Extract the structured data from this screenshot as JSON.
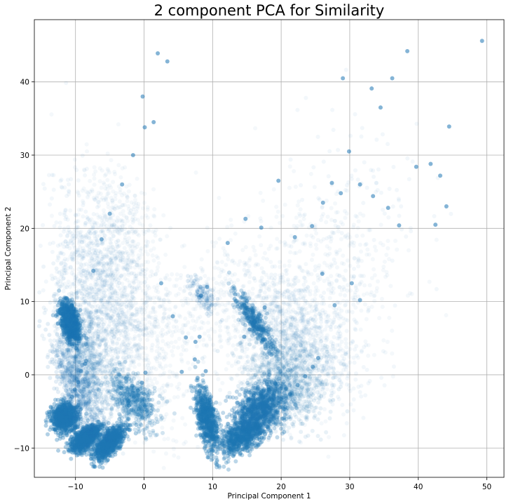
{
  "chart_data": {
    "type": "scatter",
    "title": "2 component PCA for Similarity",
    "xlabel": "Principal Component 1",
    "ylabel": "Principal Component 2",
    "xlim": [
      -16,
      52.5
    ],
    "ylim": [
      -14,
      48.5
    ],
    "xticks": [
      -10,
      0,
      10,
      20,
      30,
      40,
      50
    ],
    "yticks": [
      -10,
      0,
      10,
      20,
      30,
      40
    ],
    "xtick_labels": [
      "−10",
      "0",
      "10",
      "20",
      "30",
      "40",
      "50"
    ],
    "ytick_labels": [
      "−10",
      "0",
      "10",
      "20",
      "30",
      "40"
    ],
    "grid": true,
    "marker_color": "#1f77b4",
    "marker_alpha": 0.08,
    "series": [
      {
        "values": [
          [
            -11.2,
            7.5
          ],
          [
            -10.8,
            8.2
          ],
          [
            -11.5,
            6.4
          ],
          [
            -10.3,
            9.1
          ],
          [
            -11.0,
            5.8
          ],
          [
            -12.1,
            -6.5
          ],
          [
            -11.6,
            -5.2
          ],
          [
            -10.9,
            -4.0
          ],
          [
            -11.8,
            -6.0
          ],
          [
            -12.3,
            -6.9
          ],
          [
            -9.3,
            -9.5
          ],
          [
            -8.7,
            -8.8
          ],
          [
            -8.1,
            -7.9
          ],
          [
            -9.0,
            -9.2
          ],
          [
            -7.6,
            -6.9
          ],
          [
            -6.0,
            -10.6
          ],
          [
            -5.3,
            -9.8
          ],
          [
            -4.6,
            -8.7
          ],
          [
            -5.7,
            -10.2
          ],
          [
            -4.0,
            -7.6
          ],
          [
            -10.1,
            -2.0
          ],
          [
            -9.6,
            -1.0
          ],
          [
            -10.5,
            -3.0
          ],
          [
            -8.6,
            1.5
          ],
          [
            -9.2,
            0.5
          ],
          [
            -2.2,
            -4.2
          ],
          [
            -1.5,
            -3.0
          ],
          [
            -0.9,
            -2.1
          ],
          [
            -0.3,
            -1.1
          ],
          [
            0.2,
            0.3
          ],
          [
            9.1,
            -8.3
          ],
          [
            8.7,
            -7.2
          ],
          [
            9.5,
            -6.0
          ],
          [
            9.0,
            -4.8
          ],
          [
            9.6,
            -3.4
          ],
          [
            13.2,
            -9.4
          ],
          [
            14.1,
            -8.6
          ],
          [
            15.2,
            -7.8
          ],
          [
            16.4,
            -6.7
          ],
          [
            17.5,
            -5.6
          ],
          [
            15.1,
            -4.8
          ],
          [
            16.0,
            -3.9
          ],
          [
            17.4,
            -3.0
          ],
          [
            18.2,
            -2.0
          ],
          [
            19.1,
            -1.1
          ],
          [
            14.6,
            5.2
          ],
          [
            15.4,
            6.2
          ],
          [
            16.0,
            7.1
          ],
          [
            16.8,
            8.2
          ],
          [
            17.6,
            9.2
          ],
          [
            21.3,
            -2.6
          ],
          [
            22.4,
            -1.4
          ],
          [
            23.5,
            -0.2
          ],
          [
            24.6,
            1.1
          ],
          [
            25.4,
            2.3
          ],
          [
            -7.4,
            14.2
          ],
          [
            -6.2,
            18.5
          ],
          [
            -5.0,
            22.0
          ],
          [
            -3.2,
            26.0
          ],
          [
            -1.6,
            30.0
          ],
          [
            0.1,
            33.8
          ],
          [
            1.4,
            34.5
          ],
          [
            2.0,
            43.9
          ],
          [
            3.4,
            42.8
          ],
          [
            -0.2,
            38.0
          ],
          [
            2.5,
            12.5
          ],
          [
            4.2,
            8.0
          ],
          [
            6.1,
            5.1
          ],
          [
            7.4,
            2.1
          ],
          [
            5.5,
            0.4
          ],
          [
            8.3,
            10.8
          ],
          [
            9.2,
            12.0
          ],
          [
            8.1,
            5.2
          ],
          [
            7.5,
            4.5
          ],
          [
            9.0,
            0.5
          ],
          [
            12.2,
            18.0
          ],
          [
            14.8,
            21.3
          ],
          [
            17.1,
            20.1
          ],
          [
            19.6,
            26.5
          ],
          [
            22.0,
            18.8
          ],
          [
            24.5,
            20.3
          ],
          [
            26.1,
            23.5
          ],
          [
            27.4,
            26.2
          ],
          [
            28.7,
            24.8
          ],
          [
            29.9,
            30.5
          ],
          [
            31.5,
            26.0
          ],
          [
            33.4,
            24.4
          ],
          [
            35.6,
            22.8
          ],
          [
            37.2,
            20.4
          ],
          [
            39.7,
            28.4
          ],
          [
            41.8,
            28.8
          ],
          [
            43.2,
            27.2
          ],
          [
            44.5,
            33.9
          ],
          [
            44.1,
            23.0
          ],
          [
            42.5,
            20.5
          ],
          [
            34.5,
            36.5
          ],
          [
            36.2,
            40.5
          ],
          [
            38.4,
            44.2
          ],
          [
            33.2,
            39.1
          ],
          [
            29.0,
            40.5
          ],
          [
            49.3,
            45.6
          ],
          [
            30.3,
            12.5
          ],
          [
            27.8,
            9.5
          ],
          [
            26.0,
            13.8
          ],
          [
            31.5,
            10.2
          ]
        ]
      }
    ]
  }
}
